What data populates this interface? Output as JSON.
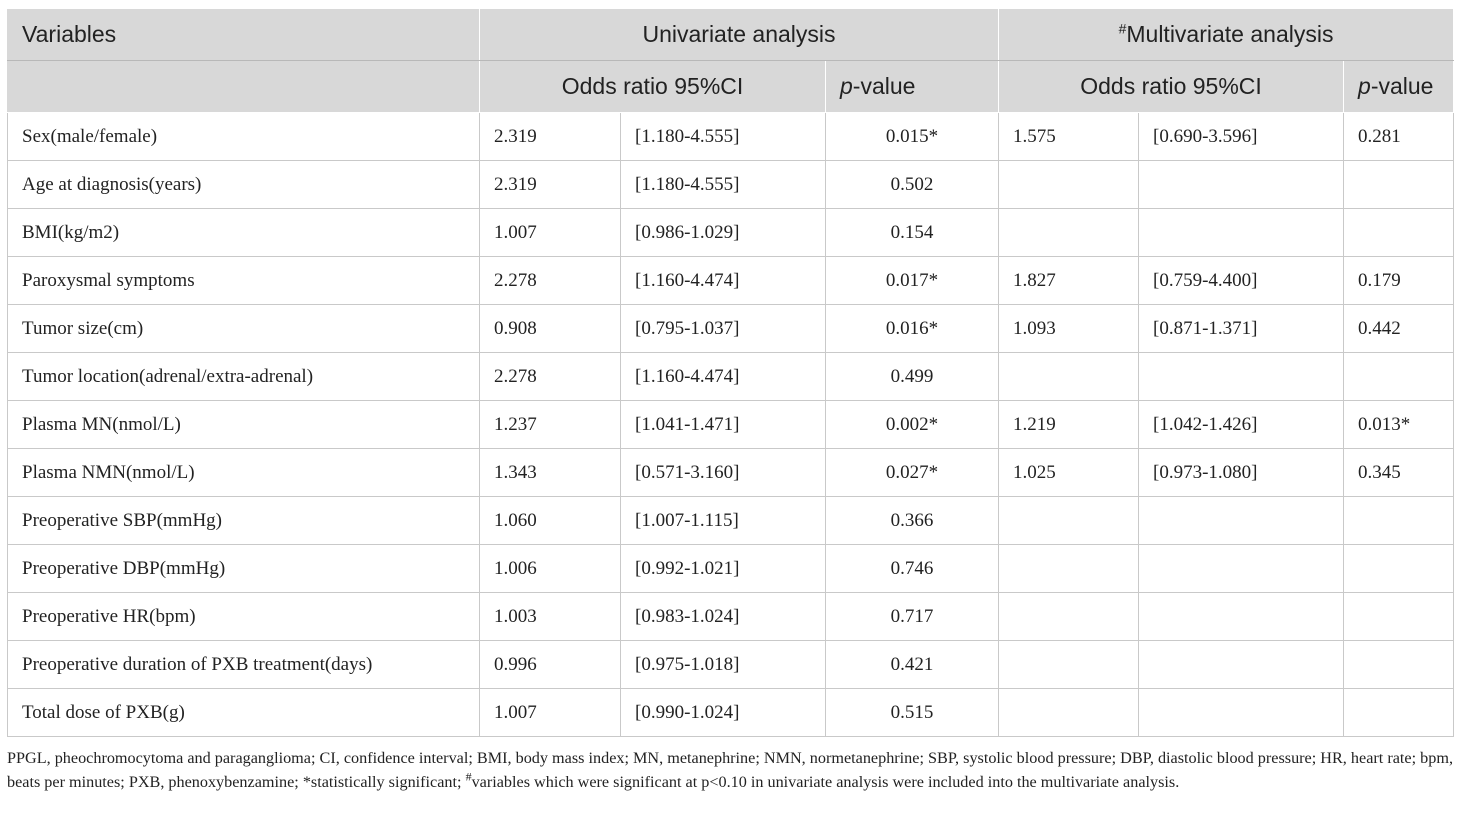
{
  "header": {
    "variables": "Variables",
    "univariate": "Univariate analysis",
    "multivariate_mark": "#",
    "multivariate": "Multivariate analysis",
    "odds_ratio_ci": "Odds ratio 95%CI",
    "p_italic": "p",
    "p_suffix": "-value"
  },
  "rows": [
    {
      "variable": "Sex(male/female)",
      "u_or": "2.319",
      "u_ci": "[1.180-4.555]",
      "u_p": "0.015*",
      "m_or": "1.575",
      "m_ci": "[0.690-3.596]",
      "m_p": "0.281"
    },
    {
      "variable": "Age at diagnosis(years)",
      "u_or": "2.319",
      "u_ci": "[1.180-4.555]",
      "u_p": "0.502",
      "m_or": "",
      "m_ci": "",
      "m_p": ""
    },
    {
      "variable": "BMI(kg/m2)",
      "u_or": "1.007",
      "u_ci": "[0.986-1.029]",
      "u_p": "0.154",
      "m_or": "",
      "m_ci": "",
      "m_p": ""
    },
    {
      "variable": "Paroxysmal symptoms",
      "u_or": "2.278",
      "u_ci": "[1.160-4.474]",
      "u_p": "0.017*",
      "m_or": "1.827",
      "m_ci": "[0.759-4.400]",
      "m_p": "0.179"
    },
    {
      "variable": "Tumor size(cm)",
      "u_or": "0.908",
      "u_ci": "[0.795-1.037]",
      "u_p": "0.016*",
      "m_or": "1.093",
      "m_ci": "[0.871-1.371]",
      "m_p": "0.442"
    },
    {
      "variable": "Tumor location(adrenal/extra-adrenal)",
      "u_or": "2.278",
      "u_ci": "[1.160-4.474]",
      "u_p": "0.499",
      "m_or": "",
      "m_ci": "",
      "m_p": ""
    },
    {
      "variable": "Plasma MN(nmol/L)",
      "u_or": "1.237",
      "u_ci": "[1.041-1.471]",
      "u_p": "0.002*",
      "m_or": "1.219",
      "m_ci": "[1.042-1.426]",
      "m_p": "0.013*"
    },
    {
      "variable": "Plasma NMN(nmol/L)",
      "u_or": "1.343",
      "u_ci": "[0.571-3.160]",
      "u_p": "0.027*",
      "m_or": "1.025",
      "m_ci": "[0.973-1.080]",
      "m_p": "0.345"
    },
    {
      "variable": "Preoperative SBP(mmHg)",
      "u_or": "1.060",
      "u_ci": "[1.007-1.115]",
      "u_p": "0.366",
      "m_or": "",
      "m_ci": "",
      "m_p": ""
    },
    {
      "variable": "Preoperative DBP(mmHg)",
      "u_or": "1.006",
      "u_ci": "[0.992-1.021]",
      "u_p": "0.746",
      "m_or": "",
      "m_ci": "",
      "m_p": ""
    },
    {
      "variable": "Preoperative HR(bpm)",
      "u_or": "1.003",
      "u_ci": "[0.983-1.024]",
      "u_p": "0.717",
      "m_or": "",
      "m_ci": "",
      "m_p": ""
    },
    {
      "variable": "Preoperative duration of PXB treatment(days)",
      "u_or": "0.996",
      "u_ci": "[0.975-1.018]",
      "u_p": "0.421",
      "m_or": "",
      "m_ci": "",
      "m_p": ""
    },
    {
      "variable": "Total dose of PXB(g)",
      "u_or": "1.007",
      "u_ci": "[0.990-1.024]",
      "u_p": "0.515",
      "m_or": "",
      "m_ci": "",
      "m_p": ""
    }
  ],
  "footnote": {
    "part1": "PPGL, pheochromocytoma and paraganglioma; CI, confidence interval; BMI, body mass index; MN, metanephrine; NMN, normetanephrine; SBP, systolic blood pressure; DBP, diastolic blood pressure; HR, heart rate; bpm, beats per minutes; PXB, phenoxybenzamine; ",
    "star_mark": "*",
    "part2": "statistically significant; ",
    "hash_mark": "#",
    "part3": "variables which were significant at p<0.10 in univariate analysis were included into the multivariate analysis."
  }
}
